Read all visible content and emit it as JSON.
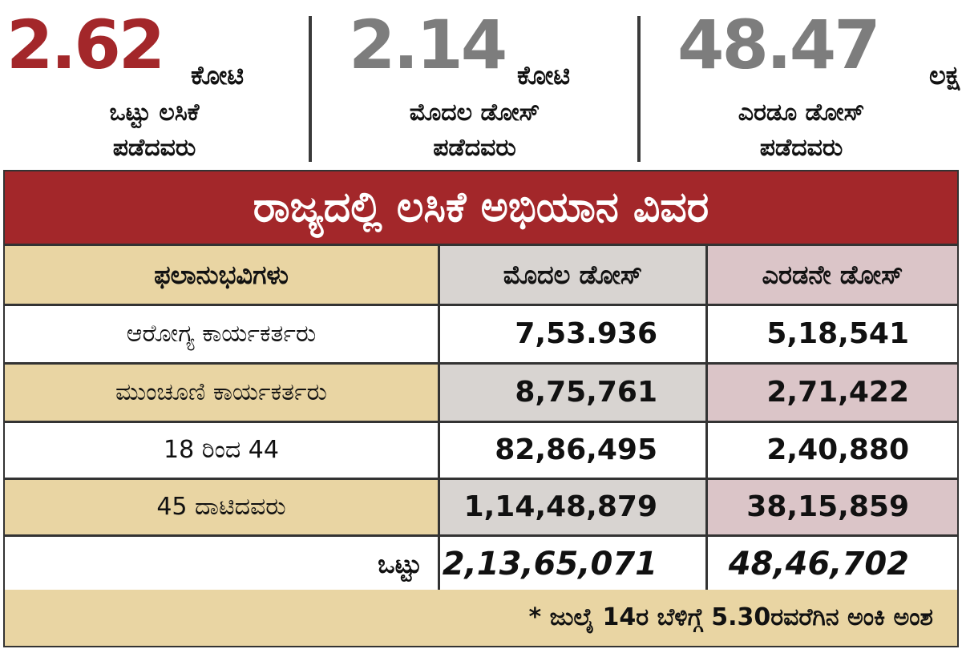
{
  "stats": [
    {
      "value": "2.62",
      "unit": "ಕೋಟಿ",
      "line1": "ಒಟ್ಟು ಲಸಿಕೆ",
      "line2": "ಪಡೆದವರು",
      "color": "#a3272a"
    },
    {
      "value": "2.14",
      "unit": "ಕೋಟಿ",
      "line1": "ಮೊದಲ ಡೋಸ್",
      "line2": "ಪಡೆದವರು",
      "color": "#7d7d7d"
    },
    {
      "value": "48.47",
      "unit": "ಲಕ್ಷ",
      "line1": "ಎರಡೂ ಡೋಸ್",
      "line2": "ಪಡೆದವರು",
      "color": "#7d7d7d"
    }
  ],
  "table": {
    "title": "ರಾಜ್ಯದಲ್ಲಿ ಲಸಿಕೆ ಅಭಿಯಾನ ವಿವರ",
    "headers": [
      "ಫಲಾನುಭವಿಗಳು",
      "ಮೊದಲ ಡೋಸ್",
      "ಎರಡನೇ ಡೋಸ್"
    ],
    "rows": [
      {
        "label": "ಆರೋಗ್ಯ ಕಾರ್ಯಕರ್ತರು",
        "first": "7,53.936",
        "second": "5,18,541"
      },
      {
        "label": "ಮುಂಚೂಣಿ ಕಾರ್ಯಕರ್ತರು",
        "first": "8,75,761",
        "second": "2,71,422"
      },
      {
        "label": "18 ರಿಂದ 44",
        "first": "82,86,495",
        "second": "2,40,880"
      },
      {
        "label": "45 ದಾಟಿದವರು",
        "first": "1,14,48,879",
        "second": "38,15,859"
      }
    ],
    "total": {
      "label": "ಒಟ್ಟು",
      "first": "2,13,65,071",
      "second": "48,46,702"
    },
    "footnote": "* ಜುಲೈ 14ರ ಬೆಳಿಗ್ಗೆ 5.30ರವರೆಗಿನ ಅಂಕಿ ಅಂಶ"
  },
  "colors": {
    "accent_red": "#a3272a",
    "beige": "#e9d5a3",
    "grey_cell": "#d8d4d1",
    "pink_cell": "#dbc5c8"
  }
}
